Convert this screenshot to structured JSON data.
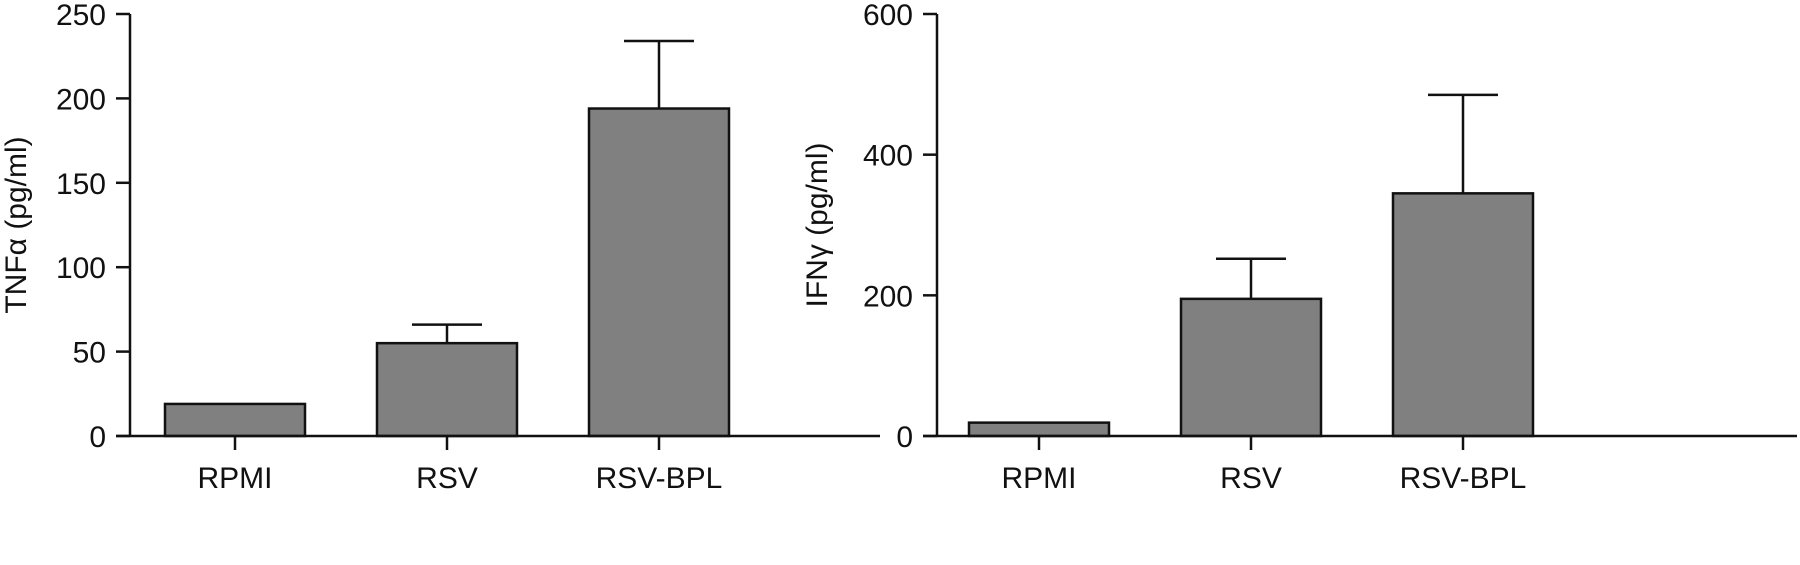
{
  "chart_data": [
    {
      "type": "bar",
      "categories": [
        "RPMI",
        "RSV",
        "RSV-BPL"
      ],
      "values": [
        19,
        55,
        194
      ],
      "error_upper": [
        19,
        66,
        234
      ],
      "ylabel": "TNFα (pg/ml)",
      "ylim": [
        0,
        250
      ],
      "yticks": [
        0,
        50,
        100,
        150,
        200,
        250
      ],
      "bar_color": "#808080",
      "grid": false
    },
    {
      "type": "bar",
      "categories": [
        "RPMI",
        "RSV",
        "RSV-BPL"
      ],
      "values": [
        19,
        195,
        345
      ],
      "error_upper": [
        19,
        252,
        485
      ],
      "ylabel": "IFNγ (pg/ml)",
      "ylim": [
        0,
        600
      ],
      "yticks": [
        0,
        200,
        400,
        600
      ],
      "bar_color": "#808080",
      "grid": false
    }
  ]
}
